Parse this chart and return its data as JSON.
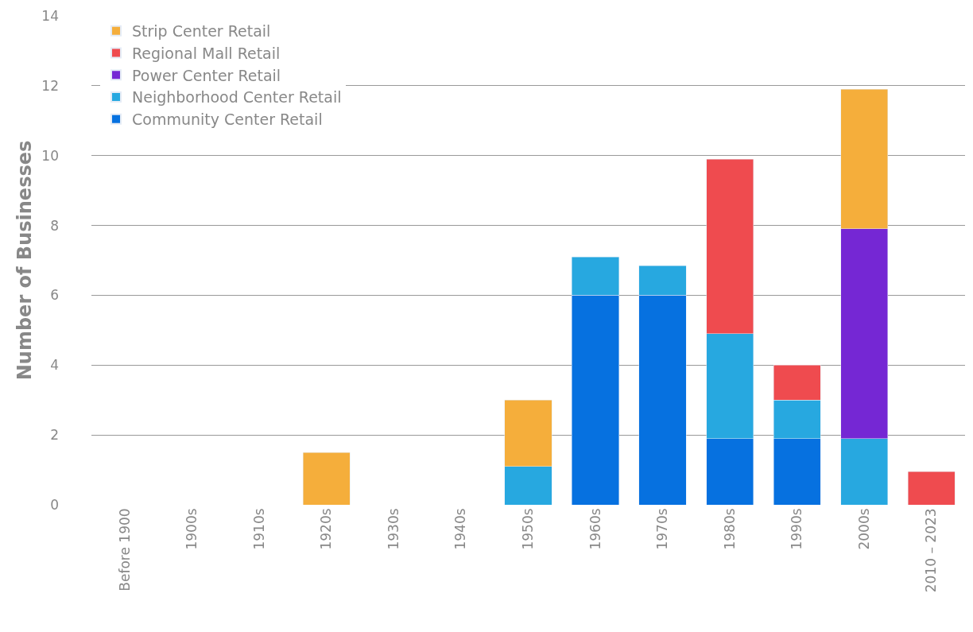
{
  "chart_data": {
    "type": "bar",
    "stacked": true,
    "ylabel": "Number of Businesses",
    "categories": [
      "Before 1900",
      "1900s",
      "1910s",
      "1920s",
      "1930s",
      "1940s",
      "1950s",
      "1960s",
      "1970s",
      "1980s",
      "1990s",
      "2000s",
      "2010 – 2023"
    ],
    "series": [
      {
        "name": "Community Center Retail",
        "color": "#0671e0",
        "values": [
          null,
          null,
          null,
          null,
          null,
          null,
          null,
          6,
          6,
          1.9,
          1.9,
          null,
          null
        ]
      },
      {
        "name": "Neighborhood Center Retail",
        "color": "#27a8e0",
        "values": [
          null,
          null,
          null,
          null,
          null,
          null,
          1.1,
          1.1,
          0.85,
          3,
          1.1,
          1.9,
          null
        ]
      },
      {
        "name": "Power Center Retail",
        "color": "#7527d4",
        "values": [
          null,
          null,
          null,
          null,
          null,
          null,
          null,
          null,
          null,
          null,
          null,
          6,
          null
        ]
      },
      {
        "name": "Regional Mall Retail",
        "color": "#ef4b4f",
        "values": [
          null,
          null,
          null,
          null,
          null,
          null,
          null,
          null,
          null,
          5,
          1,
          null,
          0.95
        ]
      },
      {
        "name": "Strip Center Retail",
        "color": "#f5ae3b",
        "values": [
          null,
          null,
          null,
          1.5,
          null,
          null,
          1.9,
          null,
          null,
          null,
          null,
          4,
          null
        ]
      }
    ],
    "ylim": [
      0,
      14
    ],
    "yticks": [
      0,
      2,
      4,
      6,
      8,
      10,
      12,
      14
    ],
    "grid": "y",
    "legend": "top left"
  }
}
